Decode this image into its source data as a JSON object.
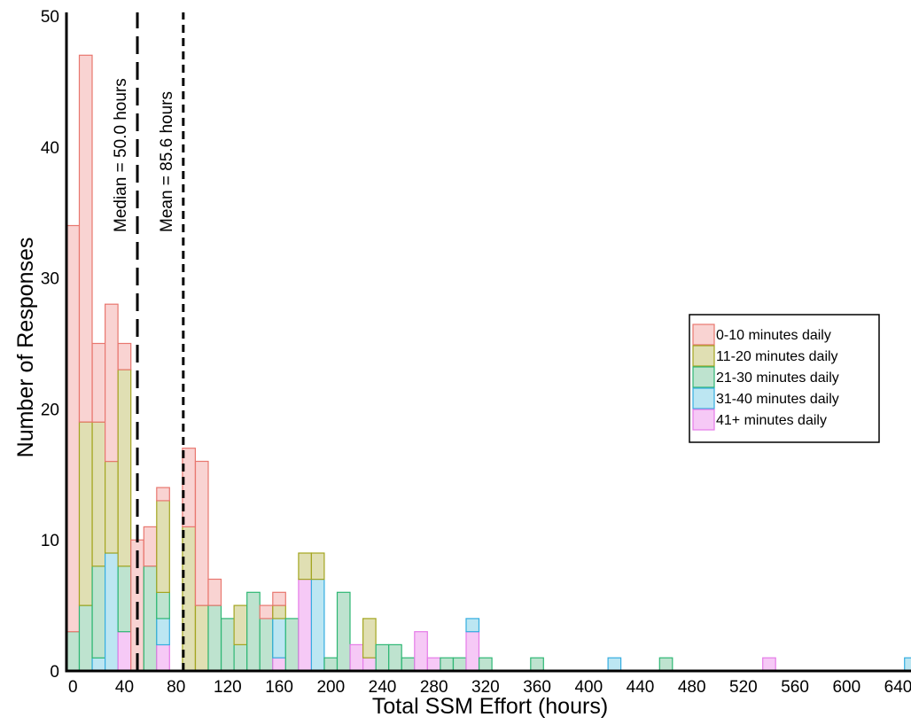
{
  "chart_data": {
    "type": "bar",
    "stacked": true,
    "xlabel": "Total SSM Effort (hours)",
    "ylabel": "Number of Responses",
    "xlim": [
      -5,
      650
    ],
    "ylim": [
      0,
      50
    ],
    "bin_width": 10,
    "x_ticks": [
      0,
      40,
      80,
      120,
      160,
      200,
      240,
      280,
      320,
      360,
      400,
      440,
      480,
      520,
      560,
      600,
      640
    ],
    "y_ticks": [
      0,
      10,
      20,
      30,
      40,
      50
    ],
    "x": [
      0,
      10,
      20,
      30,
      40,
      50,
      60,
      70,
      80,
      90,
      100,
      110,
      120,
      130,
      140,
      150,
      160,
      170,
      180,
      190,
      200,
      210,
      220,
      230,
      240,
      250,
      260,
      270,
      280,
      290,
      300,
      310,
      320,
      360,
      420,
      460,
      540,
      650
    ],
    "series": [
      {
        "name": "41+ minutes daily",
        "color": "#F6C9F6",
        "edge": "#E57BE8",
        "values": [
          0,
          0,
          0,
          0,
          3,
          0,
          0,
          2,
          0,
          0,
          0,
          0,
          0,
          0,
          0,
          0,
          1,
          0,
          7,
          0,
          0,
          0,
          2,
          1,
          0,
          0,
          0,
          3,
          1,
          0,
          0,
          3,
          0,
          0,
          0,
          0,
          1,
          0
        ]
      },
      {
        "name": "31-40 minutes daily",
        "color": "#BCE6F2",
        "edge": "#35ADE0",
        "values": [
          0,
          0,
          1,
          9,
          0,
          0,
          0,
          2,
          0,
          0,
          0,
          0,
          0,
          0,
          0,
          0,
          3,
          0,
          0,
          7,
          0,
          0,
          0,
          0,
          0,
          0,
          0,
          0,
          0,
          0,
          0,
          1,
          0,
          0,
          1,
          0,
          0,
          1
        ]
      },
      {
        "name": "21-30 minutes daily",
        "color": "#BEE3CF",
        "edge": "#2EB774",
        "values": [
          3,
          5,
          7,
          0,
          5,
          0,
          8,
          2,
          0,
          0,
          0,
          5,
          4,
          2,
          6,
          4,
          0,
          4,
          0,
          0,
          1,
          6,
          0,
          0,
          2,
          2,
          1,
          0,
          0,
          1,
          1,
          0,
          1,
          1,
          0,
          1,
          0,
          0
        ]
      },
      {
        "name": "11-20 minutes daily",
        "color": "#E0DFB3",
        "edge": "#A3A520",
        "values": [
          0,
          14,
          11,
          7,
          15,
          0,
          0,
          7,
          0,
          11,
          5,
          0,
          0,
          3,
          0,
          0,
          1,
          0,
          2,
          2,
          0,
          0,
          0,
          3,
          0,
          0,
          0,
          0,
          0,
          0,
          0,
          0,
          0,
          0,
          0,
          0,
          0,
          0
        ]
      },
      {
        "name": "0-10 minutes daily",
        "color": "#F9D3D2",
        "edge": "#E8776F",
        "values": [
          31,
          28,
          6,
          12,
          2,
          10,
          3,
          1,
          0,
          6,
          11,
          2,
          0,
          0,
          0,
          1,
          1,
          0,
          0,
          0,
          0,
          0,
          0,
          0,
          0,
          0,
          0,
          0,
          0,
          0,
          0,
          0,
          0,
          0,
          0,
          0,
          0,
          0
        ]
      }
    ],
    "legend_order": [
      "0-10 minutes daily",
      "11-20 minutes daily",
      "21-30 minutes daily",
      "31-40 minutes daily",
      "41+ minutes daily"
    ],
    "legend_position": "right",
    "reference_lines": [
      {
        "value": 50,
        "label": "Median = 50.0 hours",
        "style": "long-dash"
      },
      {
        "value": 85.6,
        "label": "Mean = 85.6 hours",
        "style": "short-dash"
      }
    ]
  }
}
